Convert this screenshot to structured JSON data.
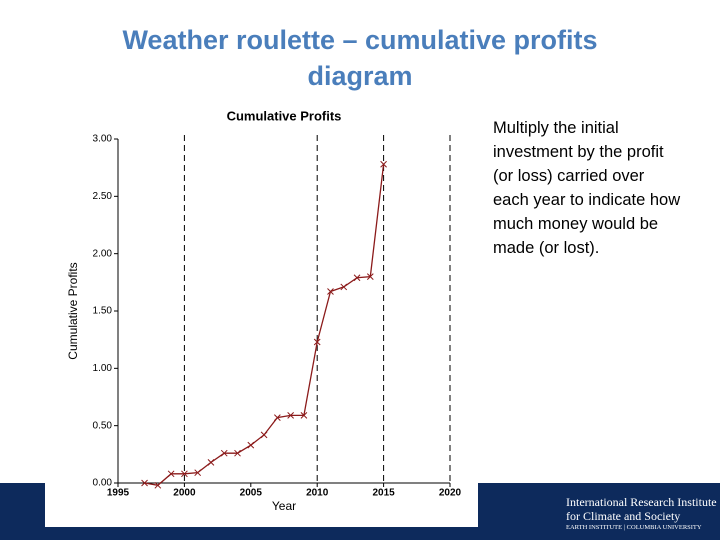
{
  "title": "Weather roulette – cumulative profits diagram",
  "text": "Multiply the initial investment by the profit (or loss) carried over each year to indicate how much money would be made (or lost).",
  "footer": {
    "line1": "International Research Institute",
    "line2": "for Climate and Society",
    "line3": "EARTH INSTITUTE | COLUMBIA UNIVERSITY"
  },
  "chart_data": {
    "type": "line",
    "title": "Cumulative Profits",
    "x_label": "Year",
    "y_label": "Cumulative Profits",
    "x": [
      1997,
      1998,
      1999,
      2000,
      2001,
      2002,
      2003,
      2004,
      2005,
      2006,
      2007,
      2008,
      2009,
      2010,
      2011,
      2012,
      2013,
      2014,
      2015
    ],
    "series": [
      {
        "color": "#8b1a1a",
        "values": [
          0.0,
          -0.02,
          0.08,
          0.08,
          0.09,
          0.18,
          0.26,
          0.26,
          0.33,
          0.42,
          0.57,
          0.59,
          0.59,
          1.23,
          1.67,
          1.71,
          1.79,
          1.8,
          2.78
        ]
      }
    ],
    "xlim": [
      1995,
      2020
    ],
    "xticks": [
      1995,
      2000,
      2005,
      2010,
      2015,
      2020
    ],
    "ylim": [
      0,
      3
    ],
    "yticks": [
      {
        "value": 0,
        "label": "0.00"
      },
      {
        "value": 0.5,
        "label": "0.50"
      },
      {
        "value": 1,
        "label": "1.00"
      },
      {
        "value": 1.5,
        "label": "1.50"
      },
      {
        "value": 2,
        "label": "2.00"
      },
      {
        "value": 2.5,
        "label": "2.50"
      },
      {
        "value": 3,
        "label": "3.00"
      }
    ],
    "vlines": [
      2000,
      2010,
      2015,
      2020
    ]
  }
}
